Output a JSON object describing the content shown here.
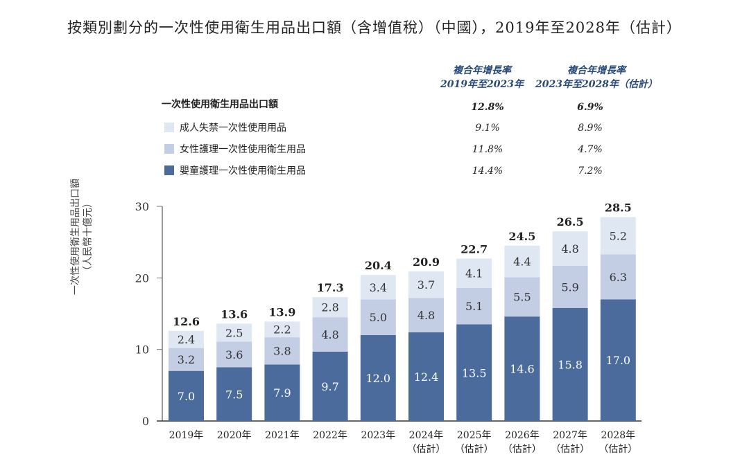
{
  "title": "按類別劃分的一次性使用衛生用品出口額（含增值稅）（中國），2019年至2028年（估計）",
  "colors": {
    "infant": "#4a6b9c",
    "feminine": "#c3cde3",
    "adult": "#dfe7f2",
    "cagr_header": "#2a4a7a"
  },
  "cagr_table": {
    "headers": [
      {
        "line1": "複合年增長率",
        "line2": "2019年至2023年"
      },
      {
        "line1": "複合年增長率",
        "line2": "2023年至2028年（估計）"
      }
    ],
    "total": {
      "label": "一次性使用衛生用品出口額",
      "values": [
        "12.8%",
        "6.9%"
      ]
    },
    "rows": [
      {
        "label": "成人失禁一次性使用用品",
        "values": [
          "9.1%",
          "8.9%"
        ]
      },
      {
        "label": "女性護理一次性使用衛生用品",
        "values": [
          "11.8%",
          "4.7%"
        ]
      },
      {
        "label": "嬰童護理一次性使用衛生用品",
        "values": [
          "14.4%",
          "7.2%"
        ]
      }
    ]
  },
  "chart_data": {
    "type": "bar",
    "stacked": true,
    "title": "按類別劃分的一次性使用衛生用品出口額（含增值稅）（中國），2019年至2028年（估計）",
    "ylabel": "一次性使用衛生用品出口額（人民幣十億元）",
    "ylabel_lines": [
      "一次性使用衛生用品出口額",
      "（人民幣十億元）"
    ],
    "ylim": [
      0,
      30
    ],
    "yticks": [
      "0",
      "10",
      "20",
      "30"
    ],
    "grid": false,
    "categories": [
      [
        "2019年"
      ],
      [
        "2020年"
      ],
      [
        "2021年"
      ],
      [
        "2022年"
      ],
      [
        "2023年"
      ],
      [
        "2024年",
        "（估計）"
      ],
      [
        "2025年",
        "（估計）"
      ],
      [
        "2026年",
        "（估計）"
      ],
      [
        "2027年",
        "（估計）"
      ],
      [
        "2028年",
        "（估計）"
      ]
    ],
    "series": [
      {
        "name": "嬰童護理一次性使用衛生用品",
        "values": [
          7.0,
          7.5,
          7.9,
          9.7,
          12.0,
          12.4,
          13.5,
          14.6,
          15.8,
          17.0
        ]
      },
      {
        "name": "女性護理一次性使用衛生用品",
        "values": [
          3.2,
          3.6,
          3.8,
          4.8,
          5.0,
          4.8,
          5.1,
          5.5,
          5.9,
          6.3
        ]
      },
      {
        "name": "成人失禁一次性使用用品",
        "values": [
          2.4,
          2.5,
          2.2,
          2.8,
          3.4,
          3.7,
          4.1,
          4.4,
          4.8,
          5.2
        ]
      }
    ],
    "totals": [
      12.6,
      13.6,
      13.9,
      17.3,
      20.4,
      20.9,
      22.7,
      24.5,
      26.5,
      28.5
    ]
  }
}
